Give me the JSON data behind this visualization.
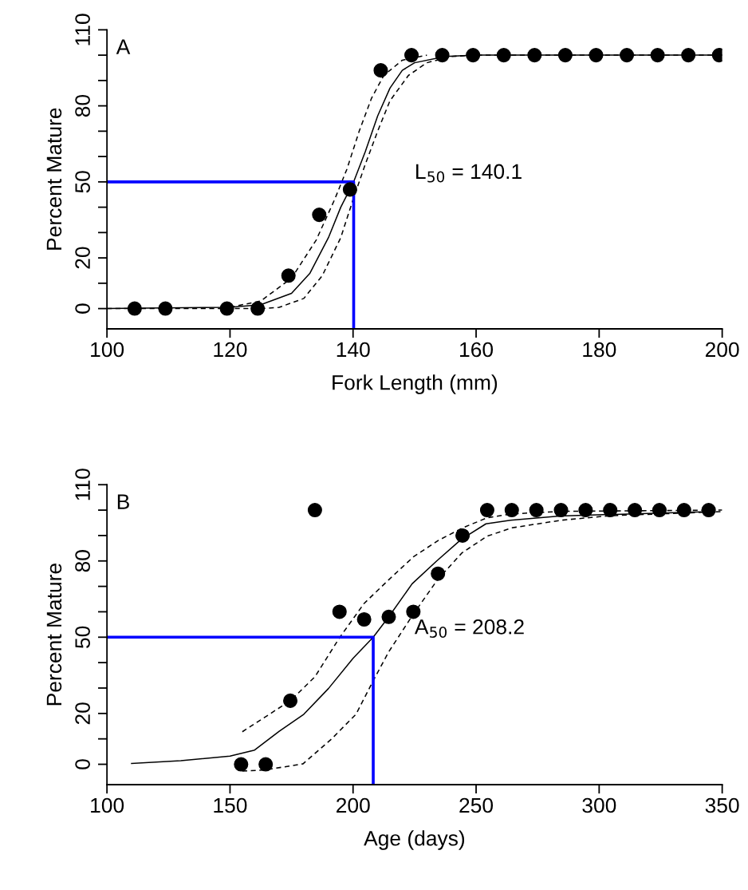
{
  "chart_data": [
    {
      "type": "scatter",
      "xlabel": "Fork Length (mm)",
      "ylabel": "Percent Mature",
      "legend": false,
      "grid": false,
      "xlim": [
        100,
        200
      ],
      "xticks": [
        100,
        120,
        140,
        160,
        180,
        200
      ],
      "ylim": [
        -8,
        110
      ],
      "yticks": [
        0,
        {
          "value": 10,
          "label": null
        },
        20,
        {
          "value": 30,
          "label": null
        },
        {
          "value": 40,
          "label": null
        },
        50,
        {
          "value": 60,
          "label": null
        },
        {
          "value": 70,
          "label": null
        },
        80,
        {
          "value": 90,
          "label": null
        },
        {
          "value": 100,
          "label": null
        },
        110
      ],
      "annotations": [
        "A",
        "L$_{50}$ = 140.1"
      ],
      "series": [
        {
          "type": "line",
          "color": "#000000",
          "line_style": "solid",
          "marker": "none",
          "x": [
            100,
            120,
            125,
            130,
            133,
            136,
            138,
            140.1,
            142,
            144,
            146,
            148,
            150,
            155,
            160,
            200
          ],
          "values": [
            0,
            0.5,
            1.5,
            6,
            14,
            28,
            40,
            50,
            62,
            76,
            87,
            94,
            97,
            99.5,
            100,
            100
          ]
        },
        {
          "type": "line",
          "color": "#000000",
          "line_style": "dashed",
          "marker": "none",
          "x": [
            120,
            125,
            130,
            134,
            137,
            139,
            141,
            143,
            145,
            148,
            152
          ],
          "values": [
            0.5,
            3,
            12,
            27,
            43,
            55,
            70,
            83,
            92,
            98,
            100
          ]
        },
        {
          "type": "line",
          "color": "#000000",
          "line_style": "dashed",
          "marker": "none",
          "x": [
            100,
            125,
            128,
            132,
            135,
            138,
            140,
            142,
            144,
            146,
            149,
            152,
            156,
            160,
            200
          ],
          "values": [
            0,
            0,
            0.5,
            4,
            13,
            28,
            43,
            57,
            70,
            82,
            92,
            97,
            99.5,
            100,
            100
          ]
        },
        {
          "type": "line",
          "color": "#0000ff",
          "line_style": "solid",
          "marker": "none",
          "x": [
            100,
            140.1,
            140.1
          ],
          "values": [
            50,
            50,
            -8
          ]
        },
        {
          "color": "#000000",
          "marker": "circle",
          "x": [
            104.5,
            109.5,
            119.5,
            124.5,
            129.5,
            134.5,
            139.5,
            144.5,
            149.5,
            154.5,
            159.5,
            164.5,
            169.5,
            174.5,
            179.5,
            184.5,
            189.5,
            194.5,
            199.5
          ],
          "values": [
            0,
            0,
            0,
            0,
            13,
            37,
            47,
            94,
            100,
            100,
            100,
            100,
            100,
            100,
            100,
            100,
            100,
            100,
            100
          ]
        }
      ]
    },
    {
      "type": "scatter",
      "xlabel": "Age (days)",
      "ylabel": "Percent Mature",
      "legend": false,
      "grid": false,
      "xlim": [
        100,
        350
      ],
      "xticks": [
        100,
        150,
        200,
        250,
        300,
        350
      ],
      "ylim": [
        -8,
        110
      ],
      "yticks": [
        0,
        {
          "value": 10,
          "label": null
        },
        20,
        {
          "value": 30,
          "label": null
        },
        {
          "value": 40,
          "label": null
        },
        50,
        {
          "value": 60,
          "label": null
        },
        {
          "value": 70,
          "label": null
        },
        80,
        {
          "value": 90,
          "label": null
        },
        {
          "value": 100,
          "label": null
        },
        110
      ],
      "annotations": [
        "B",
        "A$_{50}$ = 208.2"
      ],
      "series": [
        {
          "type": "line",
          "color": "#000000",
          "line_style": "solid",
          "marker": "none",
          "x": [
            110,
            130,
            150,
            160,
            170,
            180,
            190,
            200,
            208.2,
            214.5,
            224,
            234,
            244,
            254,
            264,
            284,
            344.5
          ],
          "values": [
            0.3,
            1.4,
            3.2,
            5.6,
            13,
            19.7,
            29.8,
            41.7,
            50,
            58,
            71,
            80,
            88.5,
            94.6,
            96,
            97.7,
            99.4
          ]
        },
        {
          "type": "line",
          "color": "#000000",
          "line_style": "dashed",
          "marker": "none",
          "x": [
            155,
            174.5,
            184.5,
            194.5,
            204.5,
            214.5,
            224.5,
            234.5,
            244.5,
            254.5,
            264.5,
            284.5,
            350
          ],
          "values": [
            12.8,
            25,
            34.4,
            49.8,
            63.3,
            72.6,
            81.6,
            88,
            93,
            97,
            98.5,
            99.5,
            100
          ]
        },
        {
          "type": "line",
          "color": "#000000",
          "line_style": "dashed",
          "marker": "none",
          "x": [
            155,
            164.5,
            179.7,
            191.3,
            201.2,
            208.1,
            214.4,
            224.3,
            234.3,
            244.3,
            254.4,
            264.4,
            284.4,
            304.4,
            350
          ],
          "values": [
            -2.7,
            -2.2,
            0.2,
            10,
            19.7,
            32.7,
            44.1,
            58.8,
            72.6,
            83.2,
            89.7,
            93,
            96,
            97.8,
            99.4
          ]
        },
        {
          "type": "line",
          "color": "#0000ff",
          "line_style": "solid",
          "marker": "none",
          "x": [
            100,
            208.2,
            208.2
          ],
          "values": [
            50,
            50,
            -8
          ]
        },
        {
          "color": "#000000",
          "marker": "circle",
          "x": [
            154.5,
            164.5,
            174.5,
            184.5,
            194.5,
            204.5,
            214.5,
            224.5,
            234.5,
            244.5,
            254.5,
            264.5,
            274.5,
            284.5,
            294.5,
            304.5,
            314.5,
            324.5,
            334.5,
            344.5
          ],
          "values": [
            0,
            0,
            25,
            100,
            60,
            57,
            58,
            60,
            75,
            90,
            100,
            100,
            100,
            100,
            100,
            100,
            100,
            100,
            100,
            100
          ]
        }
      ]
    }
  ]
}
